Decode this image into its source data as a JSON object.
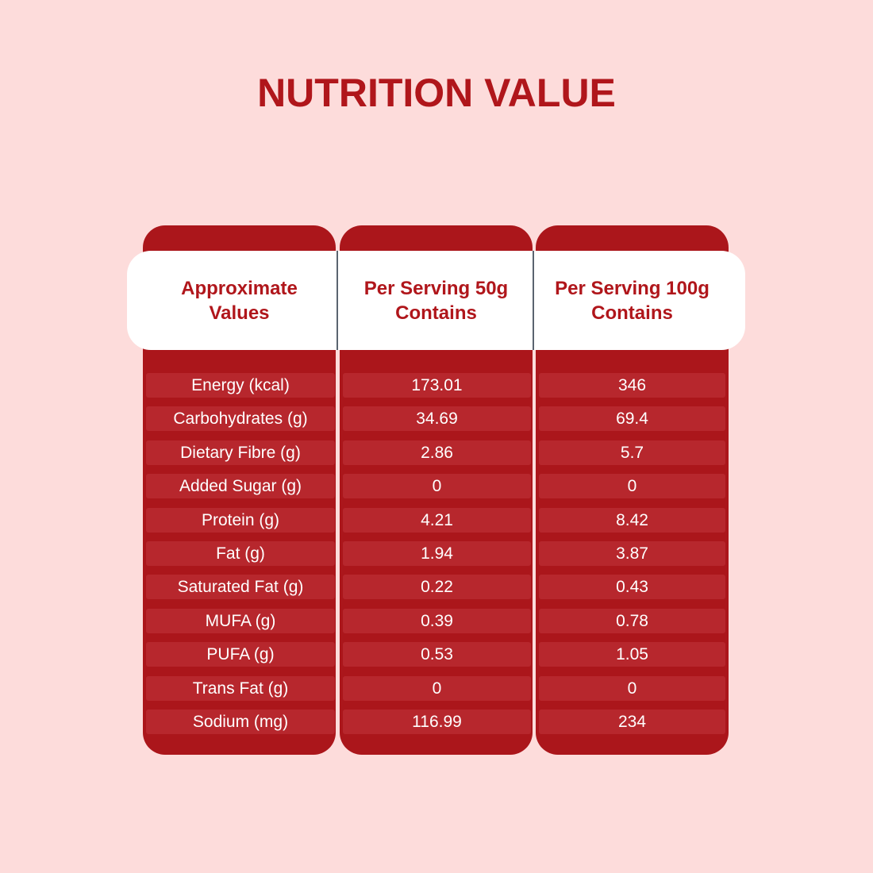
{
  "title": "NUTRITION VALUE",
  "colors": {
    "background": "#fddcdb",
    "accent": "#ab161b",
    "row": "#b7272d",
    "title": "#b0161b"
  },
  "table": {
    "headers": [
      "Approximate\nValues",
      "Per Serving 50g\nContains",
      "Per Serving 100g\nContains"
    ],
    "rows": [
      {
        "label": "Energy (kcal)",
        "per50": "173.01",
        "per100": "346"
      },
      {
        "label": "Carbohydrates (g)",
        "per50": "34.69",
        "per100": "69.4"
      },
      {
        "label": "Dietary Fibre (g)",
        "per50": "2.86",
        "per100": "5.7"
      },
      {
        "label": "Added Sugar (g)",
        "per50": "0",
        "per100": "0"
      },
      {
        "label": "Protein (g)",
        "per50": "4.21",
        "per100": "8.42"
      },
      {
        "label": "Fat (g)",
        "per50": "1.94",
        "per100": "3.87"
      },
      {
        "label": "Saturated Fat (g)",
        "per50": "0.22",
        "per100": "0.43"
      },
      {
        "label": "MUFA (g)",
        "per50": "0.39",
        "per100": "0.78"
      },
      {
        "label": "PUFA (g)",
        "per50": "0.53",
        "per100": "1.05"
      },
      {
        "label": "Trans Fat (g)",
        "per50": "0",
        "per100": "0"
      },
      {
        "label": "Sodium (mg)",
        "per50": "116.99",
        "per100": "234"
      }
    ]
  }
}
